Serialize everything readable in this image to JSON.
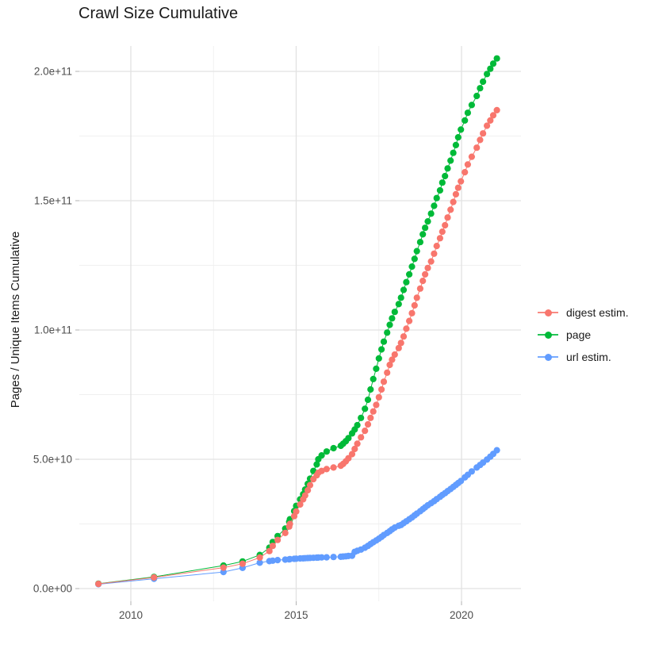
{
  "title": "Crawl Size Cumulative",
  "axes": {
    "y_title": "Pages / Unique Items Cumulative",
    "x_tick_labels": [
      "2010",
      "2015",
      "2020"
    ],
    "y_tick_labels": [
      "0.0e+00",
      "5.0e+10",
      "1.0e+11",
      "1.5e+11",
      "2.0e+11"
    ],
    "tick_label_color": "#4d4d4d",
    "major_grid_color": "#e2e2e2",
    "minor_grid_color": "#f0f0f0",
    "tick_mark_color": "#b3b3b3"
  },
  "legend": {
    "items": [
      {
        "label": "digest estim.",
        "color": "#F8766D"
      },
      {
        "label": "page",
        "color": "#00BA38"
      },
      {
        "label": "url estim.",
        "color": "#619CFF"
      }
    ]
  },
  "chart_data": {
    "type": "scatter",
    "title": "Crawl Size Cumulative",
    "xlabel": "",
    "ylabel": "Pages / Unique Items Cumulative",
    "x_major_ticks": [
      2010,
      2015,
      2020
    ],
    "x_minor_ticks": [
      2012.5,
      2017.5
    ],
    "y_major_ticks_e9": [
      0,
      50,
      100,
      150,
      200
    ],
    "y_minor_ticks_e9": [
      25,
      75,
      125,
      175
    ],
    "x_range": [
      2008.4,
      2021.8
    ],
    "y_range_e9": [
      -5,
      210
    ],
    "y_unit": "billions (1e9), axis shown in scientific notation",
    "grid": "major+minor, light gray on white",
    "legend_position": "right",
    "marker": "point",
    "series": [
      {
        "name": "digest estim.",
        "color": "#F8766D",
        "points_e9": [
          [
            2009.02,
            1.8
          ],
          [
            2010.7,
            4.3
          ],
          [
            2012.8,
            8.1
          ],
          [
            2013.38,
            9.6
          ],
          [
            2013.9,
            12
          ],
          [
            2014.19,
            14.5
          ],
          [
            2014.29,
            16.5
          ],
          [
            2014.44,
            18.8
          ],
          [
            2014.67,
            21.5
          ],
          [
            2014.79,
            24
          ],
          [
            2014.81,
            25
          ],
          [
            2014.94,
            28
          ],
          [
            2015.0,
            29.8
          ],
          [
            2015.12,
            32.5
          ],
          [
            2015.21,
            34.5
          ],
          [
            2015.27,
            36
          ],
          [
            2015.35,
            38
          ],
          [
            2015.42,
            40
          ],
          [
            2015.52,
            42.3
          ],
          [
            2015.62,
            43.8
          ],
          [
            2015.67,
            44.8
          ],
          [
            2015.77,
            45.5
          ],
          [
            2015.92,
            46.2
          ],
          [
            2016.13,
            46.8
          ],
          [
            2016.35,
            47.5
          ],
          [
            2016.42,
            48.2
          ],
          [
            2016.5,
            49.2
          ],
          [
            2016.58,
            50.4
          ],
          [
            2016.69,
            52
          ],
          [
            2016.77,
            54
          ],
          [
            2016.85,
            56
          ],
          [
            2016.96,
            58.5
          ],
          [
            2017.08,
            61
          ],
          [
            2017.17,
            63.5
          ],
          [
            2017.25,
            66
          ],
          [
            2017.33,
            68.5
          ],
          [
            2017.42,
            71
          ],
          [
            2017.5,
            74
          ],
          [
            2017.58,
            77
          ],
          [
            2017.65,
            80
          ],
          [
            2017.75,
            83.5
          ],
          [
            2017.83,
            86.5
          ],
          [
            2017.9,
            88.5
          ],
          [
            2017.98,
            90.5
          ],
          [
            2018.1,
            93
          ],
          [
            2018.17,
            95
          ],
          [
            2018.25,
            97.5
          ],
          [
            2018.33,
            100.5
          ],
          [
            2018.42,
            103.5
          ],
          [
            2018.5,
            106.5
          ],
          [
            2018.58,
            109.5
          ],
          [
            2018.65,
            112.5
          ],
          [
            2018.75,
            116
          ],
          [
            2018.83,
            119
          ],
          [
            2018.9,
            121.5
          ],
          [
            2018.98,
            124
          ],
          [
            2019.08,
            126.5
          ],
          [
            2019.17,
            129.5
          ],
          [
            2019.25,
            132.5
          ],
          [
            2019.35,
            135.5
          ],
          [
            2019.42,
            138
          ],
          [
            2019.5,
            140.5
          ],
          [
            2019.58,
            143.5
          ],
          [
            2019.67,
            146.5
          ],
          [
            2019.75,
            149.5
          ],
          [
            2019.83,
            152.5
          ],
          [
            2019.9,
            155
          ],
          [
            2019.98,
            157.5
          ],
          [
            2020.1,
            161
          ],
          [
            2020.19,
            164
          ],
          [
            2020.31,
            167
          ],
          [
            2020.46,
            170.5
          ],
          [
            2020.56,
            173.5
          ],
          [
            2020.65,
            176
          ],
          [
            2020.77,
            179
          ],
          [
            2020.87,
            181
          ],
          [
            2020.96,
            183
          ],
          [
            2021.07,
            185
          ]
        ]
      },
      {
        "name": "page",
        "color": "#00BA38",
        "points_e9": [
          [
            2009.02,
            1.9
          ],
          [
            2010.7,
            4.5
          ],
          [
            2012.8,
            8.9
          ],
          [
            2013.38,
            10.5
          ],
          [
            2013.9,
            13
          ],
          [
            2014.19,
            15.8
          ],
          [
            2014.29,
            18
          ],
          [
            2014.44,
            20.3
          ],
          [
            2014.67,
            23.2
          ],
          [
            2014.79,
            25.8
          ],
          [
            2014.81,
            26.8
          ],
          [
            2014.94,
            30
          ],
          [
            2015.0,
            32
          ],
          [
            2015.12,
            34.5
          ],
          [
            2015.21,
            36.5
          ],
          [
            2015.27,
            38.3
          ],
          [
            2015.35,
            40.5
          ],
          [
            2015.42,
            42.5
          ],
          [
            2015.52,
            45.5
          ],
          [
            2015.62,
            48
          ],
          [
            2015.67,
            50
          ],
          [
            2015.77,
            51.5
          ],
          [
            2015.92,
            53
          ],
          [
            2016.13,
            54.3
          ],
          [
            2016.35,
            55.2
          ],
          [
            2016.42,
            56
          ],
          [
            2016.5,
            57
          ],
          [
            2016.58,
            58.2
          ],
          [
            2016.69,
            60
          ],
          [
            2016.77,
            61.5
          ],
          [
            2016.85,
            63.2
          ],
          [
            2016.96,
            66
          ],
          [
            2017.08,
            69.5
          ],
          [
            2017.17,
            73
          ],
          [
            2017.25,
            77
          ],
          [
            2017.33,
            81
          ],
          [
            2017.42,
            85
          ],
          [
            2017.5,
            89
          ],
          [
            2017.58,
            92.5
          ],
          [
            2017.65,
            95.5
          ],
          [
            2017.75,
            99
          ],
          [
            2017.83,
            102
          ],
          [
            2017.9,
            104.5
          ],
          [
            2017.98,
            107
          ],
          [
            2018.1,
            110
          ],
          [
            2018.17,
            112.5
          ],
          [
            2018.25,
            115.5
          ],
          [
            2018.33,
            118.5
          ],
          [
            2018.42,
            121.5
          ],
          [
            2018.5,
            124.5
          ],
          [
            2018.58,
            127.5
          ],
          [
            2018.65,
            130.5
          ],
          [
            2018.75,
            134
          ],
          [
            2018.83,
            137
          ],
          [
            2018.9,
            139.5
          ],
          [
            2018.98,
            142
          ],
          [
            2019.08,
            145
          ],
          [
            2019.17,
            148
          ],
          [
            2019.25,
            151
          ],
          [
            2019.35,
            154
          ],
          [
            2019.42,
            157
          ],
          [
            2019.5,
            159.5
          ],
          [
            2019.58,
            162.5
          ],
          [
            2019.67,
            165.5
          ],
          [
            2019.75,
            168.5
          ],
          [
            2019.83,
            171.5
          ],
          [
            2019.9,
            174.5
          ],
          [
            2019.98,
            177.5
          ],
          [
            2020.1,
            181
          ],
          [
            2020.19,
            184
          ],
          [
            2020.31,
            187
          ],
          [
            2020.46,
            190.5
          ],
          [
            2020.56,
            193.5
          ],
          [
            2020.65,
            196
          ],
          [
            2020.77,
            199
          ],
          [
            2020.87,
            201
          ],
          [
            2020.96,
            203
          ],
          [
            2021.07,
            205
          ]
        ]
      },
      {
        "name": "url estim.",
        "color": "#619CFF",
        "points_e9": [
          [
            2009.02,
            1.7
          ],
          [
            2010.7,
            3.8
          ],
          [
            2012.8,
            6.4
          ],
          [
            2013.38,
            8
          ],
          [
            2013.9,
            10
          ],
          [
            2014.19,
            10.6
          ],
          [
            2014.29,
            10.8
          ],
          [
            2014.44,
            11
          ],
          [
            2014.67,
            11.2
          ],
          [
            2014.79,
            11.3
          ],
          [
            2014.81,
            11.4
          ],
          [
            2014.94,
            11.5
          ],
          [
            2015.0,
            11.55
          ],
          [
            2015.12,
            11.65
          ],
          [
            2015.21,
            11.7
          ],
          [
            2015.27,
            11.75
          ],
          [
            2015.35,
            11.8
          ],
          [
            2015.42,
            11.85
          ],
          [
            2015.52,
            11.9
          ],
          [
            2015.62,
            11.95
          ],
          [
            2015.67,
            12
          ],
          [
            2015.77,
            12.05
          ],
          [
            2015.92,
            12.1
          ],
          [
            2016.13,
            12.2
          ],
          [
            2016.35,
            12.3
          ],
          [
            2016.42,
            12.4
          ],
          [
            2016.5,
            12.5
          ],
          [
            2016.58,
            12.6
          ],
          [
            2016.69,
            12.7
          ],
          [
            2016.77,
            14.2
          ],
          [
            2016.85,
            14.6
          ],
          [
            2016.96,
            15.1
          ],
          [
            2017.08,
            15.8
          ],
          [
            2017.17,
            16.5
          ],
          [
            2017.25,
            17.2
          ],
          [
            2017.33,
            17.9
          ],
          [
            2017.42,
            18.6
          ],
          [
            2017.5,
            19.3
          ],
          [
            2017.58,
            20
          ],
          [
            2017.65,
            20.7
          ],
          [
            2017.75,
            21.5
          ],
          [
            2017.83,
            22.2
          ],
          [
            2017.9,
            22.9
          ],
          [
            2017.98,
            23.6
          ],
          [
            2018.1,
            24.3
          ],
          [
            2018.17,
            24.6
          ],
          [
            2018.25,
            25.3
          ],
          [
            2018.33,
            26
          ],
          [
            2018.42,
            26.8
          ],
          [
            2018.5,
            27.5
          ],
          [
            2018.58,
            28.3
          ],
          [
            2018.65,
            29
          ],
          [
            2018.75,
            29.9
          ],
          [
            2018.83,
            30.7
          ],
          [
            2018.9,
            31.4
          ],
          [
            2018.98,
            32.2
          ],
          [
            2019.08,
            33
          ],
          [
            2019.17,
            33.8
          ],
          [
            2019.25,
            34.6
          ],
          [
            2019.35,
            35.5
          ],
          [
            2019.42,
            36.2
          ],
          [
            2019.5,
            36.9
          ],
          [
            2019.58,
            37.7
          ],
          [
            2019.67,
            38.5
          ],
          [
            2019.75,
            39.3
          ],
          [
            2019.83,
            40.1
          ],
          [
            2019.9,
            40.8
          ],
          [
            2019.98,
            41.6
          ],
          [
            2020.1,
            43
          ],
          [
            2020.19,
            44
          ],
          [
            2020.31,
            45.3
          ],
          [
            2020.46,
            46.8
          ],
          [
            2020.56,
            47.8
          ],
          [
            2020.65,
            48.7
          ],
          [
            2020.77,
            49.9
          ],
          [
            2020.87,
            51
          ],
          [
            2020.96,
            52.1
          ],
          [
            2021.07,
            53.5
          ]
        ]
      }
    ]
  }
}
